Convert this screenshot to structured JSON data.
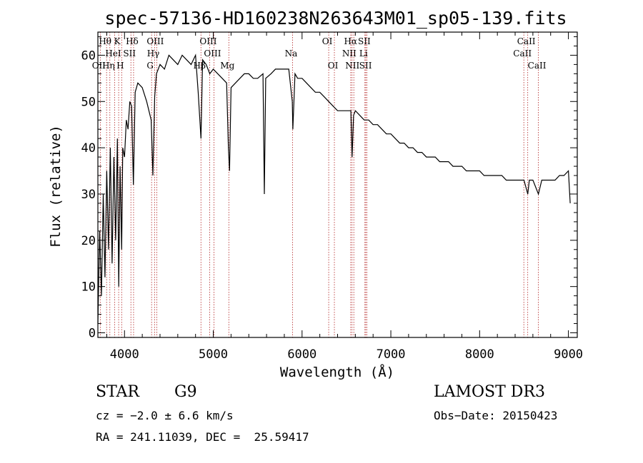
{
  "chart_data": {
    "type": "line",
    "title": "spec-57136-HD160238N263643M01_sp05-139.fits",
    "xlabel": "Wavelength (Å)",
    "ylabel": "Flux (relative)",
    "xlim": [
      3700,
      9100
    ],
    "ylim": [
      -1,
      65
    ],
    "xticks": [
      4000,
      5000,
      6000,
      7000,
      8000,
      9000
    ],
    "yticks": [
      0,
      10,
      20,
      30,
      40,
      50,
      60
    ],
    "series": [
      {
        "name": "spectrum",
        "x": [
          3700,
          3720,
          3740,
          3760,
          3780,
          3800,
          3820,
          3840,
          3860,
          3880,
          3900,
          3920,
          3935,
          3950,
          3968,
          3980,
          4000,
          4020,
          4040,
          4060,
          4080,
          4100,
          4120,
          4150,
          4200,
          4250,
          4300,
          4320,
          4340,
          4360,
          4400,
          4450,
          4500,
          4550,
          4600,
          4650,
          4700,
          4750,
          4800,
          4830,
          4861,
          4880,
          4920,
          4960,
          5000,
          5050,
          5100,
          5150,
          5170,
          5183,
          5200,
          5250,
          5300,
          5350,
          5400,
          5450,
          5500,
          5560,
          5575,
          5590,
          5650,
          5700,
          5750,
          5800,
          5850,
          5890,
          5896,
          5920,
          5950,
          6000,
          6050,
          6100,
          6150,
          6200,
          6250,
          6300,
          6350,
          6400,
          6450,
          6500,
          6550,
          6563,
          6580,
          6600,
          6650,
          6700,
          6750,
          6800,
          6850,
          6900,
          6950,
          7000,
          7050,
          7100,
          7150,
          7200,
          7250,
          7300,
          7350,
          7400,
          7450,
          7500,
          7550,
          7600,
          7650,
          7700,
          7750,
          7800,
          7850,
          7900,
          7950,
          8000,
          8050,
          8100,
          8150,
          8200,
          8250,
          8300,
          8350,
          8400,
          8450,
          8500,
          8542,
          8560,
          8600,
          8662,
          8700,
          8750,
          8800,
          8850,
          8900,
          8950,
          9000,
          9020
        ],
        "y": [
          2,
          22,
          8,
          30,
          12,
          35,
          18,
          40,
          15,
          38,
          20,
          42,
          10,
          36,
          18,
          40,
          38,
          46,
          44,
          50,
          49,
          32,
          52,
          54,
          53,
          50,
          46,
          34,
          51,
          56,
          58,
          57,
          60,
          59,
          58,
          60,
          59,
          58,
          60,
          52,
          42,
          59,
          58,
          56,
          57,
          56,
          55,
          54,
          40,
          35,
          53,
          54,
          55,
          56,
          56,
          55,
          55,
          56,
          30,
          55,
          56,
          57,
          57,
          57,
          57,
          50,
          44,
          56,
          55,
          55,
          54,
          53,
          52,
          52,
          51,
          50,
          49,
          48,
          48,
          48,
          48,
          38,
          47,
          48,
          47,
          46,
          46,
          45,
          45,
          44,
          43,
          43,
          42,
          41,
          41,
          40,
          40,
          39,
          39,
          38,
          38,
          38,
          37,
          37,
          37,
          36,
          36,
          36,
          35,
          35,
          35,
          35,
          34,
          34,
          34,
          34,
          34,
          33,
          33,
          33,
          33,
          33,
          30,
          33,
          33,
          30,
          33,
          33,
          33,
          33,
          34,
          34,
          35,
          28
        ]
      }
    ],
    "lines": [
      {
        "label": "Hθ",
        "x": 3798,
        "row": 1
      },
      {
        "label": "OII",
        "x": 3727,
        "row": 3
      },
      {
        "label": "Hη",
        "x": 3835,
        "row": 3
      },
      {
        "label": "HeI",
        "x": 3889,
        "row": 2
      },
      {
        "label": "K",
        "x": 3934,
        "row": 1
      },
      {
        "label": "H",
        "x": 3968,
        "row": 3
      },
      {
        "label": "Hδ",
        "x": 4102,
        "row": 1
      },
      {
        "label": "SII",
        "x": 4072,
        "row": 2
      },
      {
        "label": "OIII",
        "x": 4363,
        "row": 1
      },
      {
        "label": "Hγ",
        "x": 4340,
        "row": 2
      },
      {
        "label": "G",
        "x": 4305,
        "row": 3
      },
      {
        "label": "Hβ",
        "x": 4861,
        "row": 3
      },
      {
        "label": "OIII",
        "x": 4959,
        "row": 1
      },
      {
        "label": "OIII",
        "x": 5007,
        "row": 2
      },
      {
        "label": "Mg",
        "x": 5175,
        "row": 3
      },
      {
        "label": "Na",
        "x": 5893,
        "row": 2
      },
      {
        "label": "OI",
        "x": 6300,
        "row": 1
      },
      {
        "label": "OI",
        "x": 6364,
        "row": 3
      },
      {
        "label": "Hα",
        "x": 6563,
        "row": 1
      },
      {
        "label": "NII",
        "x": 6548,
        "row": 2
      },
      {
        "label": "NII",
        "x": 6583,
        "row": 3
      },
      {
        "label": "SII",
        "x": 6717,
        "row": 1
      },
      {
        "label": "Li",
        "x": 6708,
        "row": 2
      },
      {
        "label": "SII",
        "x": 6731,
        "row": 3
      },
      {
        "label": "CaII",
        "x": 8498,
        "row": 2
      },
      {
        "label": "CaII",
        "x": 8542,
        "row": 1
      },
      {
        "label": "CaII",
        "x": 8662,
        "row": 3
      }
    ],
    "annotations": {
      "object_class": "STAR",
      "subclass": "G9",
      "survey": "LAMOST DR3",
      "cz": "cz = −2.0 ± 6.6 km/s",
      "obs_date": "Obs−Date: 20150423",
      "coords": "RA = 241.11039, DEC =  25.59417"
    },
    "colors": {
      "spectrum": "#000000",
      "lines": "#b22222",
      "axes": "#000000"
    }
  }
}
